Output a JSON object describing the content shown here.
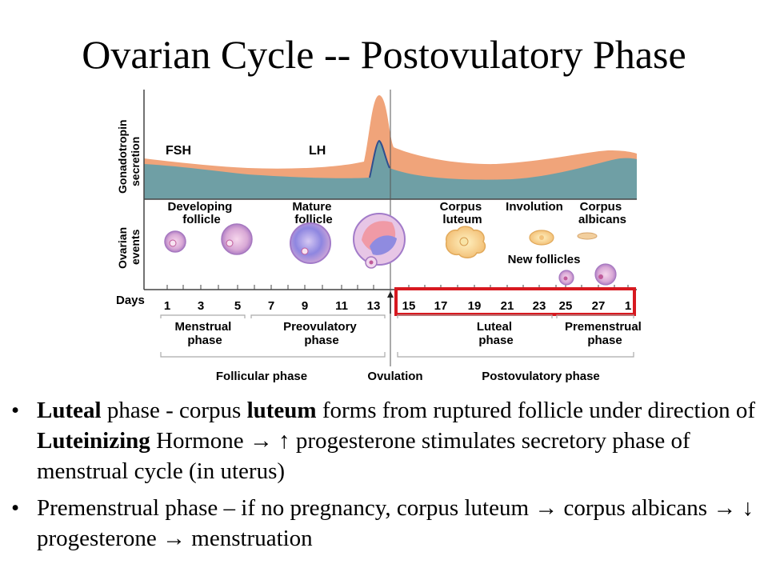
{
  "title": "Ovarian Cycle -- Postovulatory Phase",
  "diagram": {
    "gonadotropin_axis_label": "Gonadotropin secretion",
    "ovarian_axis_label": "Ovarian events",
    "fsh_label": "FSH",
    "lh_label": "LH",
    "events": {
      "developing_follicle": [
        "Developing",
        "follicle"
      ],
      "mature_follicle": [
        "Mature",
        "follicle"
      ],
      "corpus_luteum": [
        "Corpus",
        "luteum"
      ],
      "involution": "Involution",
      "corpus_albicans": [
        "Corpus",
        "albicans"
      ],
      "new_follicles": "New follicles"
    },
    "days_label": "Days",
    "days": [
      "1",
      "3",
      "5",
      "7",
      "9",
      "11",
      "13",
      "15",
      "17",
      "19",
      "21",
      "23",
      "25",
      "27",
      "1"
    ],
    "phases": {
      "menstrual": [
        "Menstrual",
        "phase"
      ],
      "preovulatory": [
        "Preovulatory",
        "phase"
      ],
      "luteal": [
        "Luteal",
        "phase"
      ],
      "premenstrual": [
        "Premenstrual",
        "phase"
      ]
    },
    "bottom_labels": {
      "follicular": "Follicular phase",
      "ovulation": "Ovulation",
      "postovulatory": "Postovulatory phase"
    },
    "highlight_color": "#d71920",
    "fsh_color": "#f0a47a",
    "lh_color": "#6f9fa5"
  },
  "bullets": [
    {
      "b1": "Luteal",
      "t1": " phase - corpus ",
      "b2": "luteum",
      "t2": " forms from ruptured follicle under direction of ",
      "b3": "Luteinizing",
      "t3": " Hormone → ↑ progesterone stimulates secretory phase of menstrual cycle (in uterus)"
    },
    {
      "t1": "Premenstrual phase – if no pregnancy, corpus luteum → corpus albicans → ↓ progesterone → menstruation"
    }
  ]
}
